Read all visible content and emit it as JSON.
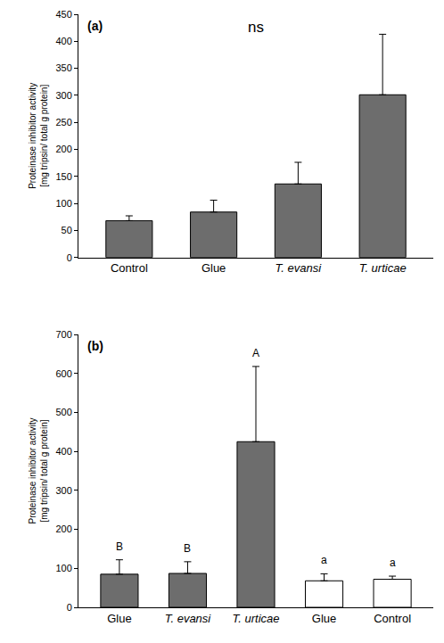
{
  "chart_data": [
    {
      "type": "bar",
      "panel_label": "(a)",
      "annotation": "ns",
      "ylabel": "Proteinase inhibitor activity\n[mg tripsin/ total g protein]",
      "categories": [
        "Control",
        "Glue",
        "T. evansi",
        "T. urticae"
      ],
      "values": [
        68,
        84,
        136,
        301
      ],
      "error": [
        9,
        22,
        40,
        112
      ],
      "color": "#6d6d6d",
      "ylim": [
        0,
        450
      ],
      "yticks": [
        0,
        50,
        100,
        150,
        200,
        250,
        300,
        350,
        400,
        450
      ],
      "grid": false
    },
    {
      "type": "bar",
      "panel_label": "(b)",
      "ylabel": "Proteinase inhibitor activity\n[mg tripsin/ total g protein]",
      "categories": [
        "Glue",
        "T. evansi",
        "T. urticae",
        "Glue",
        "Control"
      ],
      "values": [
        85,
        87,
        425,
        68,
        72
      ],
      "error": [
        37,
        30,
        193,
        18,
        8
      ],
      "group_letters": [
        "B",
        "B",
        "A",
        "a",
        "a"
      ],
      "colors": [
        "#6d6d6d",
        "#6d6d6d",
        "#6d6d6d",
        "#ffffff",
        "#ffffff"
      ],
      "ylim": [
        0,
        700
      ],
      "yticks": [
        0,
        100,
        200,
        300,
        400,
        500,
        600,
        700
      ],
      "grid": false
    }
  ]
}
